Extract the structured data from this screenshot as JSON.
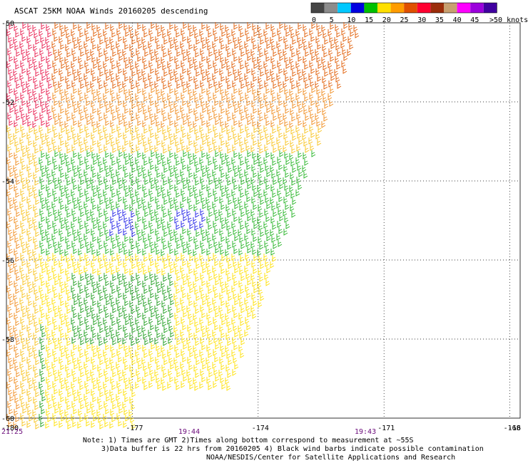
{
  "title": "ASCAT 25KM NOAA Winds 20160205 descending",
  "legend": {
    "unit_label": ">50 knots",
    "bins": [
      {
        "label": "0",
        "color": "#454545"
      },
      {
        "label": "5",
        "color": "#8c8c8c"
      },
      {
        "label": "10",
        "color": "#00c8ff"
      },
      {
        "label": "15",
        "color": "#0000e0"
      },
      {
        "label": "20",
        "color": "#00c000"
      },
      {
        "label": "25",
        "color": "#ffe000"
      },
      {
        "label": "30",
        "color": "#ff9c00"
      },
      {
        "label": "35",
        "color": "#e05000"
      },
      {
        "label": "40",
        "color": "#ff0030"
      },
      {
        "label": "45",
        "color": "#9b2d0a"
      },
      {
        "label": "",
        "color": "#c8a070"
      },
      {
        "label": "",
        "color": "#ff00ff"
      },
      {
        "label": "",
        "color": "#9b00dc"
      },
      {
        "label": "",
        "color": "#4000a0"
      }
    ],
    "tick_labels": [
      "0",
      "5",
      "10",
      "15",
      "20",
      "25",
      "30",
      "35",
      "40",
      "45"
    ]
  },
  "map": {
    "lat_labels": [
      "-50",
      "-52",
      "-54",
      "-56",
      "-58",
      "-60"
    ],
    "lon_labels": [
      "-180",
      "-177",
      "-174",
      "-171",
      "-168",
      "-16"
    ],
    "time_labels": [
      "21:25",
      "19:44",
      "19:43"
    ]
  },
  "notes": {
    "line1": "Note: 1) Times are GMT 2)Times along bottom correspond to measurement at ~55S",
    "line2": "3)Data buffer is 22 hrs from 20160205 4) Black wind barbs indicate possible contamination",
    "line3": "NOAA/NESDIS/Center for Satellite Applications and Research"
  }
}
